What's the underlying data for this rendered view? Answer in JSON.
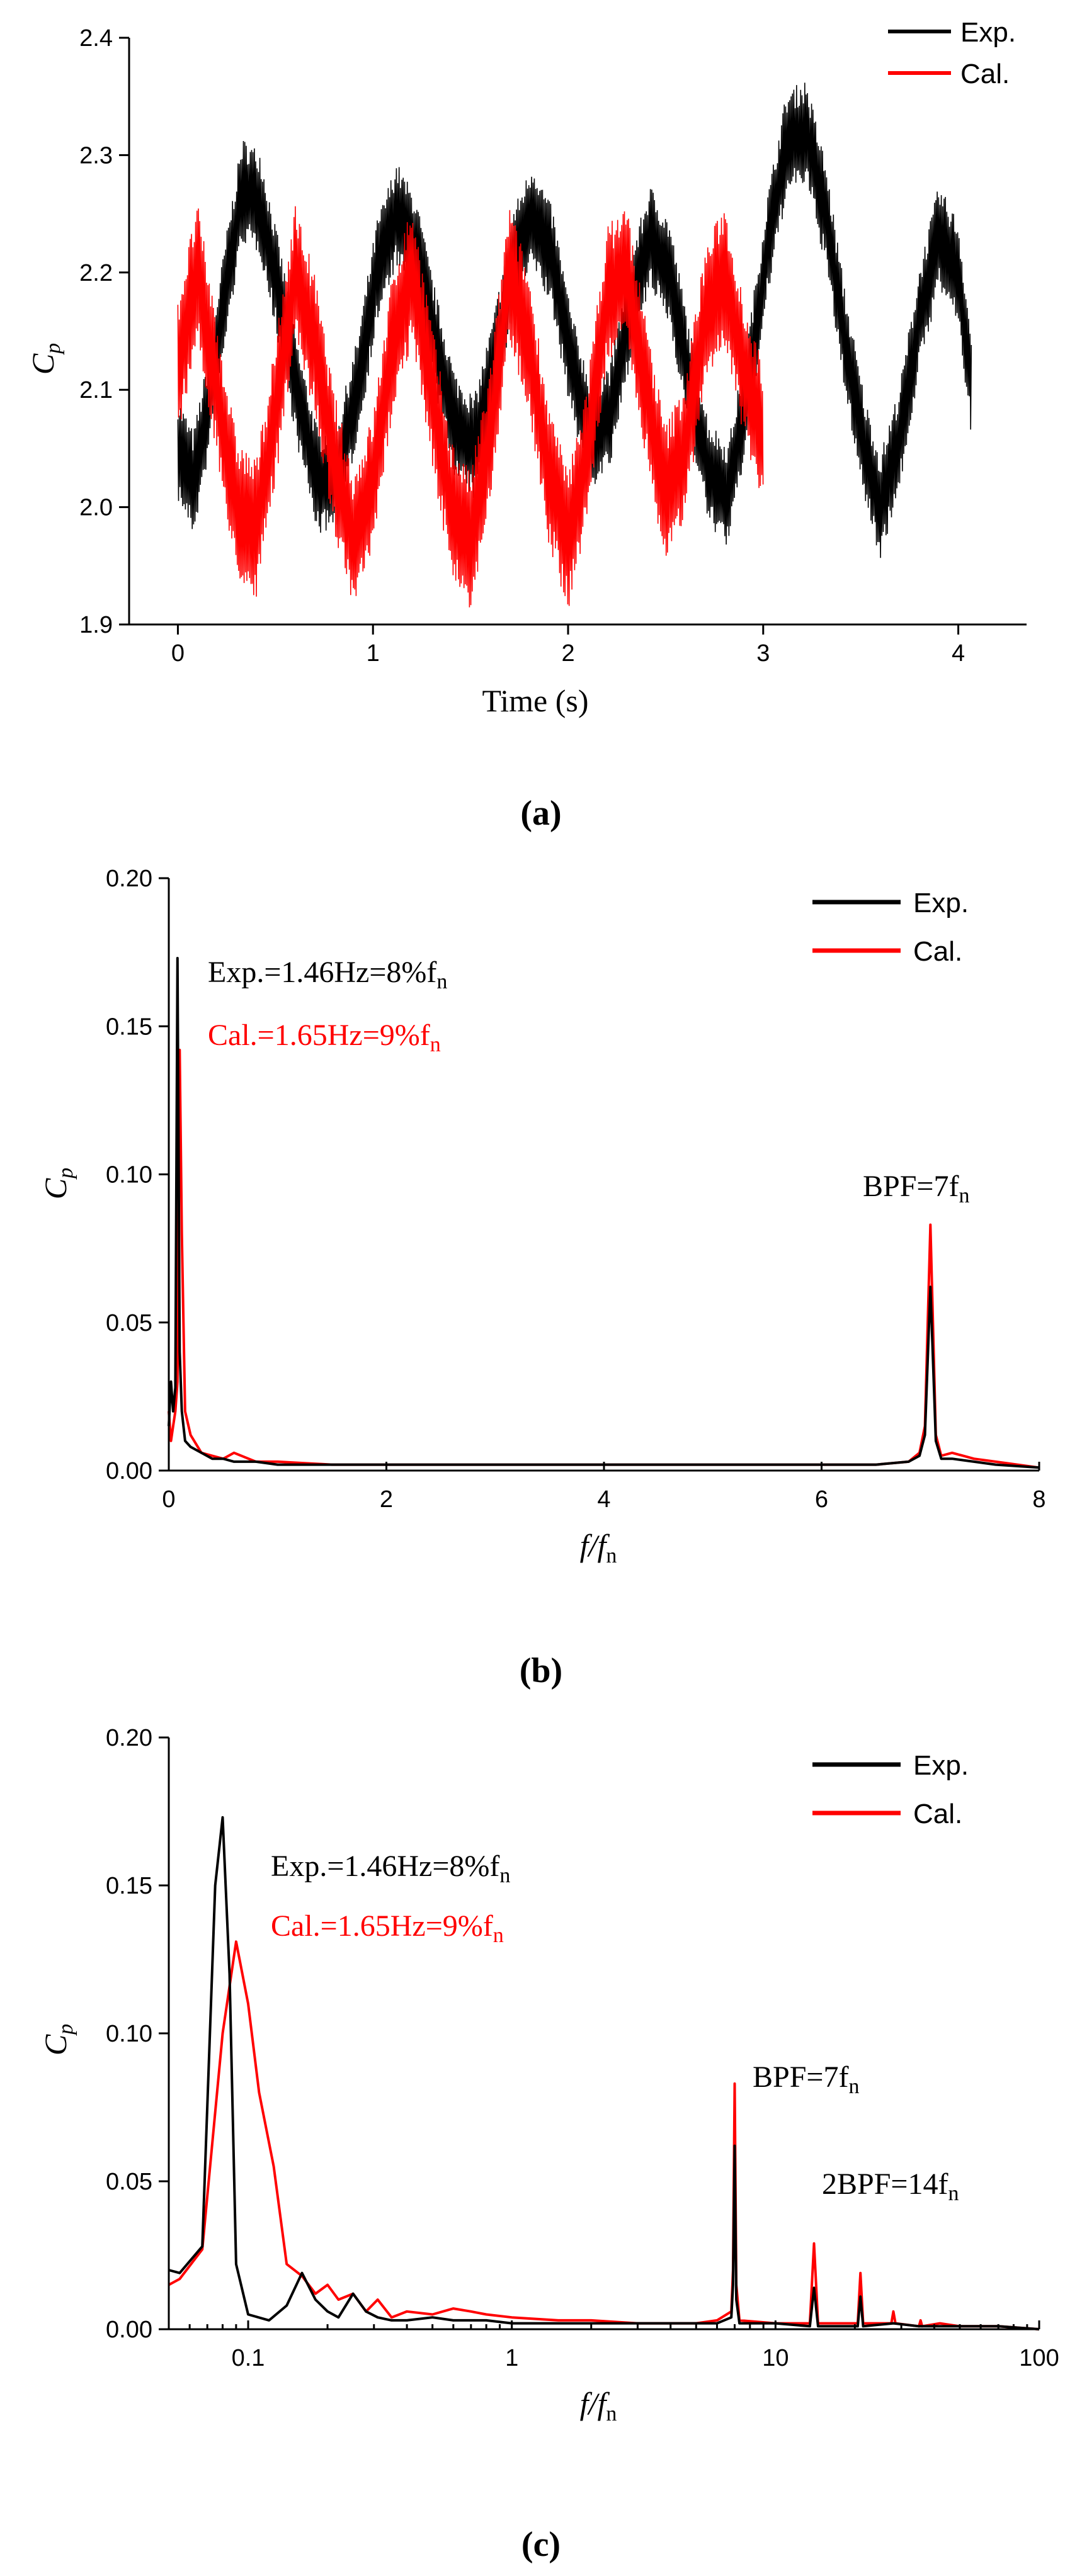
{
  "colors": {
    "exp": "#000000",
    "cal": "#ff0000"
  },
  "chart_data": [
    {
      "id": "a",
      "type": "line",
      "title": "",
      "xlabel": "Time (s)",
      "ylabel": {
        "main": "C",
        "sub": "p"
      },
      "xlim": [
        -0.25,
        4.35
      ],
      "ylim": [
        1.9,
        2.4
      ],
      "xticks": [
        0,
        1,
        2,
        3,
        4
      ],
      "yticks": [
        1.9,
        2.0,
        2.1,
        2.2,
        2.3,
        2.4
      ],
      "xtick_labels": [
        "0",
        "1",
        "2",
        "3",
        "4"
      ],
      "ytick_labels": [
        "1.9",
        "2.0",
        "2.1",
        "2.2",
        "2.3",
        "2.4"
      ],
      "legend": {
        "position": "top-right",
        "entries": [
          "Exp.",
          "Cal."
        ]
      },
      "panel_label": "(a)",
      "series": [
        {
          "name": "Exp.",
          "x": [
            0.0,
            0.08,
            0.15,
            0.25,
            0.33,
            0.42,
            0.52,
            0.62,
            0.72,
            0.82,
            0.92,
            1.02,
            1.12,
            1.22,
            1.32,
            1.42,
            1.52,
            1.62,
            1.72,
            1.82,
            1.92,
            2.02,
            2.12,
            2.22,
            2.32,
            2.42,
            2.52,
            2.62,
            2.72,
            2.82,
            2.92,
            3.02,
            3.12,
            3.22,
            3.32,
            3.42,
            3.52,
            3.6,
            3.7,
            3.8,
            3.9,
            4.0,
            4.07
          ],
          "y": [
            2.05,
            2.02,
            2.08,
            2.19,
            2.27,
            2.26,
            2.18,
            2.09,
            2.02,
            2.03,
            2.1,
            2.2,
            2.25,
            2.22,
            2.14,
            2.07,
            2.05,
            2.12,
            2.21,
            2.25,
            2.21,
            2.12,
            2.06,
            2.08,
            2.17,
            2.23,
            2.2,
            2.11,
            2.03,
            2.01,
            2.1,
            2.22,
            2.31,
            2.32,
            2.25,
            2.14,
            2.05,
            2.0,
            2.06,
            2.16,
            2.23,
            2.2,
            2.1
          ],
          "amplitude": 0.045
        },
        {
          "name": "Cal.",
          "x": [
            0.0,
            0.1,
            0.2,
            0.3,
            0.4,
            0.5,
            0.6,
            0.7,
            0.8,
            0.9,
            1.0,
            1.1,
            1.2,
            1.3,
            1.4,
            1.5,
            1.6,
            1.7,
            1.8,
            1.9,
            2.0,
            2.1,
            2.2,
            2.3,
            2.4,
            2.5,
            2.6,
            2.7,
            2.8,
            2.9,
            3.0
          ],
          "y": [
            2.12,
            2.2,
            2.1,
            2.0,
            1.98,
            2.08,
            2.2,
            2.14,
            2.04,
            1.97,
            2.02,
            2.14,
            2.2,
            2.1,
            2.0,
            1.97,
            2.06,
            2.2,
            2.14,
            2.03,
            1.97,
            2.05,
            2.18,
            2.2,
            2.1,
            2.01,
            2.05,
            2.16,
            2.2,
            2.12,
            2.06
          ],
          "amplitude": 0.06
        }
      ]
    },
    {
      "id": "b",
      "type": "line",
      "title": "",
      "xlabel": {
        "main": "f/f",
        "sub": "n"
      },
      "ylabel": {
        "main": "C",
        "sub": "p"
      },
      "xlim": [
        0,
        8
      ],
      "ylim": [
        0,
        0.2
      ],
      "xticks": [
        0,
        2,
        4,
        6,
        8
      ],
      "yticks": [
        0,
        0.05,
        0.1,
        0.15,
        0.2
      ],
      "xtick_labels": [
        "0",
        "2",
        "4",
        "6",
        "8"
      ],
      "ytick_labels": [
        "0.00",
        "0.05",
        "0.10",
        "0.15",
        "0.20"
      ],
      "legend": {
        "position": "top-right",
        "entries": [
          "Exp.",
          "Cal."
        ]
      },
      "annotations": [
        {
          "text": "Exp.=1.46Hz=8%f",
          "sub": "n",
          "series": "Exp."
        },
        {
          "text": "Cal.=1.65Hz=9%f",
          "sub": "n",
          "series": "Cal."
        },
        {
          "text": "BPF=7f",
          "sub": "n",
          "series": ""
        }
      ],
      "panel_label": "(b)",
      "series": [
        {
          "name": "Cal.",
          "x": [
            0,
            0.02,
            0.04,
            0.06,
            0.08,
            0.1,
            0.12,
            0.15,
            0.2,
            0.3,
            0.4,
            0.5,
            0.6,
            0.8,
            1.0,
            1.5,
            2.0,
            3.0,
            4.0,
            5.0,
            6.0,
            6.5,
            6.8,
            6.9,
            6.95,
            7.0,
            7.05,
            7.1,
            7.2,
            7.4,
            7.6,
            8.0
          ],
          "y": [
            0.02,
            0.01,
            0.015,
            0.02,
            0.03,
            0.142,
            0.08,
            0.02,
            0.012,
            0.006,
            0.005,
            0.004,
            0.006,
            0.003,
            0.003,
            0.002,
            0.002,
            0.002,
            0.002,
            0.002,
            0.002,
            0.002,
            0.003,
            0.006,
            0.015,
            0.083,
            0.012,
            0.005,
            0.006,
            0.004,
            0.003,
            0.001
          ]
        },
        {
          "name": "Exp.",
          "x": [
            0,
            0.02,
            0.04,
            0.06,
            0.08,
            0.1,
            0.12,
            0.15,
            0.2,
            0.3,
            0.4,
            0.5,
            0.6,
            0.8,
            1.0,
            1.5,
            2.0,
            3.0,
            4.0,
            5.0,
            6.0,
            6.5,
            6.8,
            6.9,
            6.95,
            7.0,
            7.05,
            7.1,
            7.2,
            7.4,
            7.6,
            8.0
          ],
          "y": [
            0.015,
            0.03,
            0.02,
            0.028,
            0.173,
            0.04,
            0.02,
            0.01,
            0.008,
            0.006,
            0.004,
            0.004,
            0.003,
            0.003,
            0.002,
            0.002,
            0.002,
            0.002,
            0.002,
            0.002,
            0.002,
            0.002,
            0.003,
            0.005,
            0.012,
            0.062,
            0.01,
            0.004,
            0.004,
            0.003,
            0.002,
            0.001
          ]
        }
      ]
    },
    {
      "id": "c",
      "type": "line",
      "xscale": "log",
      "title": "",
      "xlabel": {
        "main": "f/f",
        "sub": "n"
      },
      "ylabel": {
        "main": "C",
        "sub": "p"
      },
      "xlim": [
        0.05,
        100
      ],
      "ylim": [
        0,
        0.2
      ],
      "xticks": [
        0.1,
        1,
        10,
        100
      ],
      "yticks": [
        0,
        0.05,
        0.1,
        0.15,
        0.2
      ],
      "xtick_labels": [
        "0.1",
        "1",
        "10",
        "100"
      ],
      "ytick_labels": [
        "0.00",
        "0.05",
        "0.10",
        "0.15",
        "0.20"
      ],
      "legend": {
        "position": "top-right",
        "entries": [
          "Exp.",
          "Cal."
        ]
      },
      "annotations": [
        {
          "text": "Exp.=1.46Hz=8%f",
          "sub": "n",
          "series": "Exp."
        },
        {
          "text": "Cal.=1.65Hz=9%f",
          "sub": "n",
          "series": "Cal."
        },
        {
          "text": "BPF=7f",
          "sub": "n",
          "series": ""
        },
        {
          "text": "2BPF=14f",
          "sub": "n",
          "series": ""
        }
      ],
      "panel_label": "(c)",
      "series": [
        {
          "name": "Cal.",
          "x": [
            0.05,
            0.055,
            0.067,
            0.08,
            0.09,
            0.1,
            0.11,
            0.125,
            0.14,
            0.16,
            0.18,
            0.2,
            0.22,
            0.25,
            0.28,
            0.31,
            0.35,
            0.4,
            0.5,
            0.6,
            0.7,
            0.8,
            1.0,
            1.5,
            2,
            3,
            4,
            5,
            6,
            6.8,
            6.9,
            7.0,
            7.1,
            7.3,
            10,
            13.5,
            14.0,
            14.5,
            20.5,
            21.0,
            21.5,
            27.5,
            28.0,
            28.5,
            35,
            35.5,
            36,
            42,
            50,
            70,
            100
          ],
          "y": [
            0.015,
            0.017,
            0.027,
            0.1,
            0.131,
            0.11,
            0.08,
            0.055,
            0.022,
            0.018,
            0.012,
            0.015,
            0.01,
            0.012,
            0.006,
            0.01,
            0.004,
            0.006,
            0.005,
            0.007,
            0.006,
            0.005,
            0.004,
            0.003,
            0.003,
            0.002,
            0.002,
            0.002,
            0.003,
            0.006,
            0.02,
            0.083,
            0.015,
            0.003,
            0.002,
            0.002,
            0.029,
            0.002,
            0.002,
            0.019,
            0.002,
            0.002,
            0.006,
            0.002,
            0.001,
            0.003,
            0.001,
            0.002,
            0.001,
            0.001,
            0.0
          ]
        },
        {
          "name": "Exp.",
          "x": [
            0.05,
            0.055,
            0.067,
            0.075,
            0.08,
            0.085,
            0.09,
            0.1,
            0.12,
            0.14,
            0.16,
            0.18,
            0.2,
            0.22,
            0.25,
            0.28,
            0.31,
            0.35,
            0.4,
            0.5,
            0.6,
            0.8,
            1.0,
            1.5,
            2,
            3,
            4,
            5,
            6,
            6.8,
            6.9,
            7.0,
            7.1,
            7.3,
            10,
            13.5,
            14.0,
            14.5,
            20.5,
            21.0,
            21.5,
            28,
            35,
            50,
            70,
            100
          ],
          "y": [
            0.02,
            0.019,
            0.028,
            0.15,
            0.173,
            0.12,
            0.022,
            0.005,
            0.003,
            0.008,
            0.019,
            0.01,
            0.006,
            0.004,
            0.012,
            0.006,
            0.004,
            0.003,
            0.003,
            0.004,
            0.003,
            0.003,
            0.002,
            0.002,
            0.002,
            0.002,
            0.002,
            0.002,
            0.002,
            0.004,
            0.015,
            0.062,
            0.01,
            0.002,
            0.002,
            0.001,
            0.014,
            0.001,
            0.001,
            0.011,
            0.001,
            0.002,
            0.001,
            0.001,
            0.001,
            0.0
          ]
        }
      ]
    }
  ]
}
